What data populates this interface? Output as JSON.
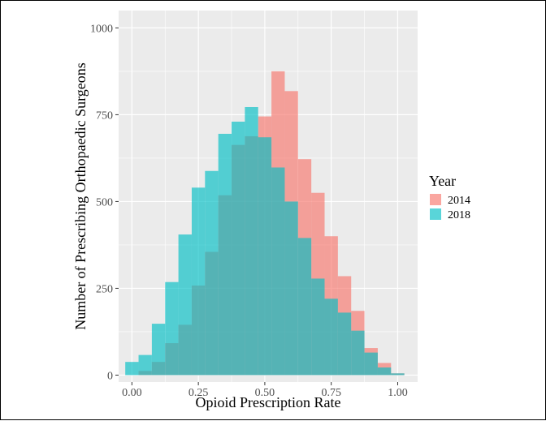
{
  "chart_data": {
    "type": "histogram",
    "title": "",
    "xlabel": "Opioid Prescription Rate",
    "ylabel": "Number of Prescribing Orthopaedic Surgeons",
    "xlim": [
      -0.05,
      1.075
    ],
    "ylim": [
      -20,
      1050
    ],
    "xticks": [
      0.0,
      0.25,
      0.5,
      0.75,
      1.0
    ],
    "xtick_labels": [
      "0.00",
      "0.25",
      "0.50",
      "0.75",
      "1.00"
    ],
    "yticks": [
      0,
      250,
      500,
      750,
      1000
    ],
    "ytick_labels": [
      "0",
      "250",
      "500",
      "750",
      "1000"
    ],
    "bin_width": 0.05,
    "bin_starts": [
      -0.025,
      0.025,
      0.075,
      0.125,
      0.175,
      0.225,
      0.275,
      0.325,
      0.375,
      0.425,
      0.475,
      0.525,
      0.575,
      0.625,
      0.675,
      0.725,
      0.775,
      0.825,
      0.875,
      0.925,
      0.975
    ],
    "legend": {
      "title": "Year",
      "position": "right"
    },
    "series": [
      {
        "name": "2014",
        "color": "#F8766D",
        "values": [
          0,
          12,
          38,
          92,
          145,
          258,
          355,
          518,
          663,
          688,
          745,
          875,
          818,
          622,
          525,
          400,
          285,
          185,
          78,
          35,
          5
        ]
      },
      {
        "name": "2018",
        "color": "#00BFC4",
        "values": [
          38,
          58,
          148,
          268,
          405,
          540,
          588,
          695,
          730,
          772,
          685,
          598,
          500,
          395,
          278,
          220,
          180,
          128,
          65,
          22,
          5
        ]
      }
    ]
  }
}
